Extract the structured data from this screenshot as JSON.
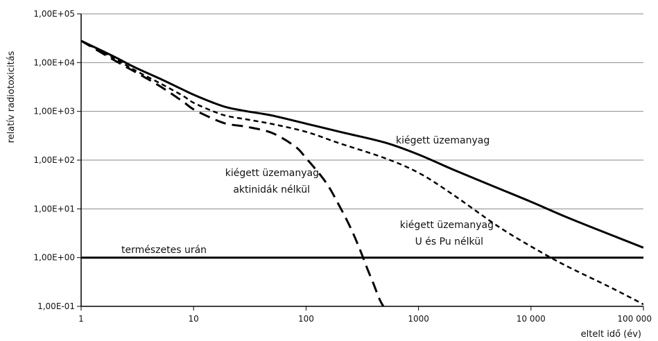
{
  "chart_data": {
    "type": "line",
    "title": "",
    "xlabel": "eltelt idő (év)",
    "ylabel": "relatív radiotoxicitás",
    "x_scale": "log",
    "y_scale": "log",
    "xlim": [
      1,
      100000
    ],
    "ylim": [
      0.1,
      100000
    ],
    "grid": "horizontal",
    "x_ticks": [
      {
        "value": 1,
        "label": "1"
      },
      {
        "value": 10,
        "label": "10"
      },
      {
        "value": 100,
        "label": "100"
      },
      {
        "value": 1000,
        "label": "1000"
      },
      {
        "value": 10000,
        "label": "10 000"
      },
      {
        "value": 100000,
        "label": "100 000"
      }
    ],
    "y_ticks": [
      {
        "value": 0.1,
        "label": "1,00E-01"
      },
      {
        "value": 1,
        "label": "1,00E+00"
      },
      {
        "value": 10,
        "label": "1,00E+01"
      },
      {
        "value": 100,
        "label": "1,00E+02"
      },
      {
        "value": 1000,
        "label": "1,00E+03"
      },
      {
        "value": 10000,
        "label": "1,00E+04"
      },
      {
        "value": 100000,
        "label": "1,00E+05"
      }
    ],
    "series": [
      {
        "name": "kiégett üzemanyag",
        "style": "solid",
        "x": [
          1,
          2,
          3,
          5,
          8,
          10,
          15,
          20,
          30,
          50,
          100,
          200,
          500,
          1000,
          2000,
          5000,
          10000,
          20000,
          50000,
          100000
        ],
        "y": [
          28000,
          13000,
          8000,
          4700,
          2800,
          2200,
          1500,
          1200,
          1000,
          820,
          560,
          380,
          230,
          130,
          65,
          27,
          14,
          7,
          3,
          1.6
        ]
      },
      {
        "name": "kiégett üzemanyag U és Pu nélkül",
        "style": "short-dash",
        "x": [
          1,
          2,
          3,
          5,
          8,
          10,
          15,
          20,
          30,
          50,
          100,
          200,
          500,
          1000,
          2000,
          5000,
          10000,
          20000,
          50000,
          100000
        ],
        "y": [
          28000,
          12000,
          7000,
          3800,
          2100,
          1500,
          1000,
          800,
          680,
          550,
          380,
          220,
          110,
          55,
          20,
          4.5,
          1.7,
          0.7,
          0.25,
          0.11
        ]
      },
      {
        "name": "kiégett üzemanyag aktinidák nélkül",
        "style": "long-dash",
        "x": [
          1,
          2,
          3,
          5,
          8,
          10,
          15,
          20,
          30,
          50,
          80,
          100,
          150,
          200,
          250,
          300,
          350,
          400,
          450,
          500
        ],
        "y": [
          28000,
          11000,
          6500,
          3300,
          1600,
          1100,
          700,
          550,
          480,
          360,
          190,
          110,
          35,
          11,
          4,
          1.5,
          0.6,
          0.28,
          0.14,
          0.09
        ]
      },
      {
        "name": "természetes urán",
        "style": "thick-solid",
        "x": [
          1,
          100000
        ],
        "y": [
          1,
          1
        ]
      }
    ],
    "annotations": [
      {
        "id": "spent",
        "text": "kiégett üzemanyag"
      },
      {
        "id": "no_act_1",
        "text": "kiégett üzemanyag"
      },
      {
        "id": "no_act_2",
        "text": "aktinidák nélkül"
      },
      {
        "id": "no_upu_1",
        "text": "kiégett üzemanyag"
      },
      {
        "id": "no_upu_2",
        "text": "U és Pu nélkül"
      },
      {
        "id": "uranium",
        "text": "természetes urán"
      }
    ]
  }
}
